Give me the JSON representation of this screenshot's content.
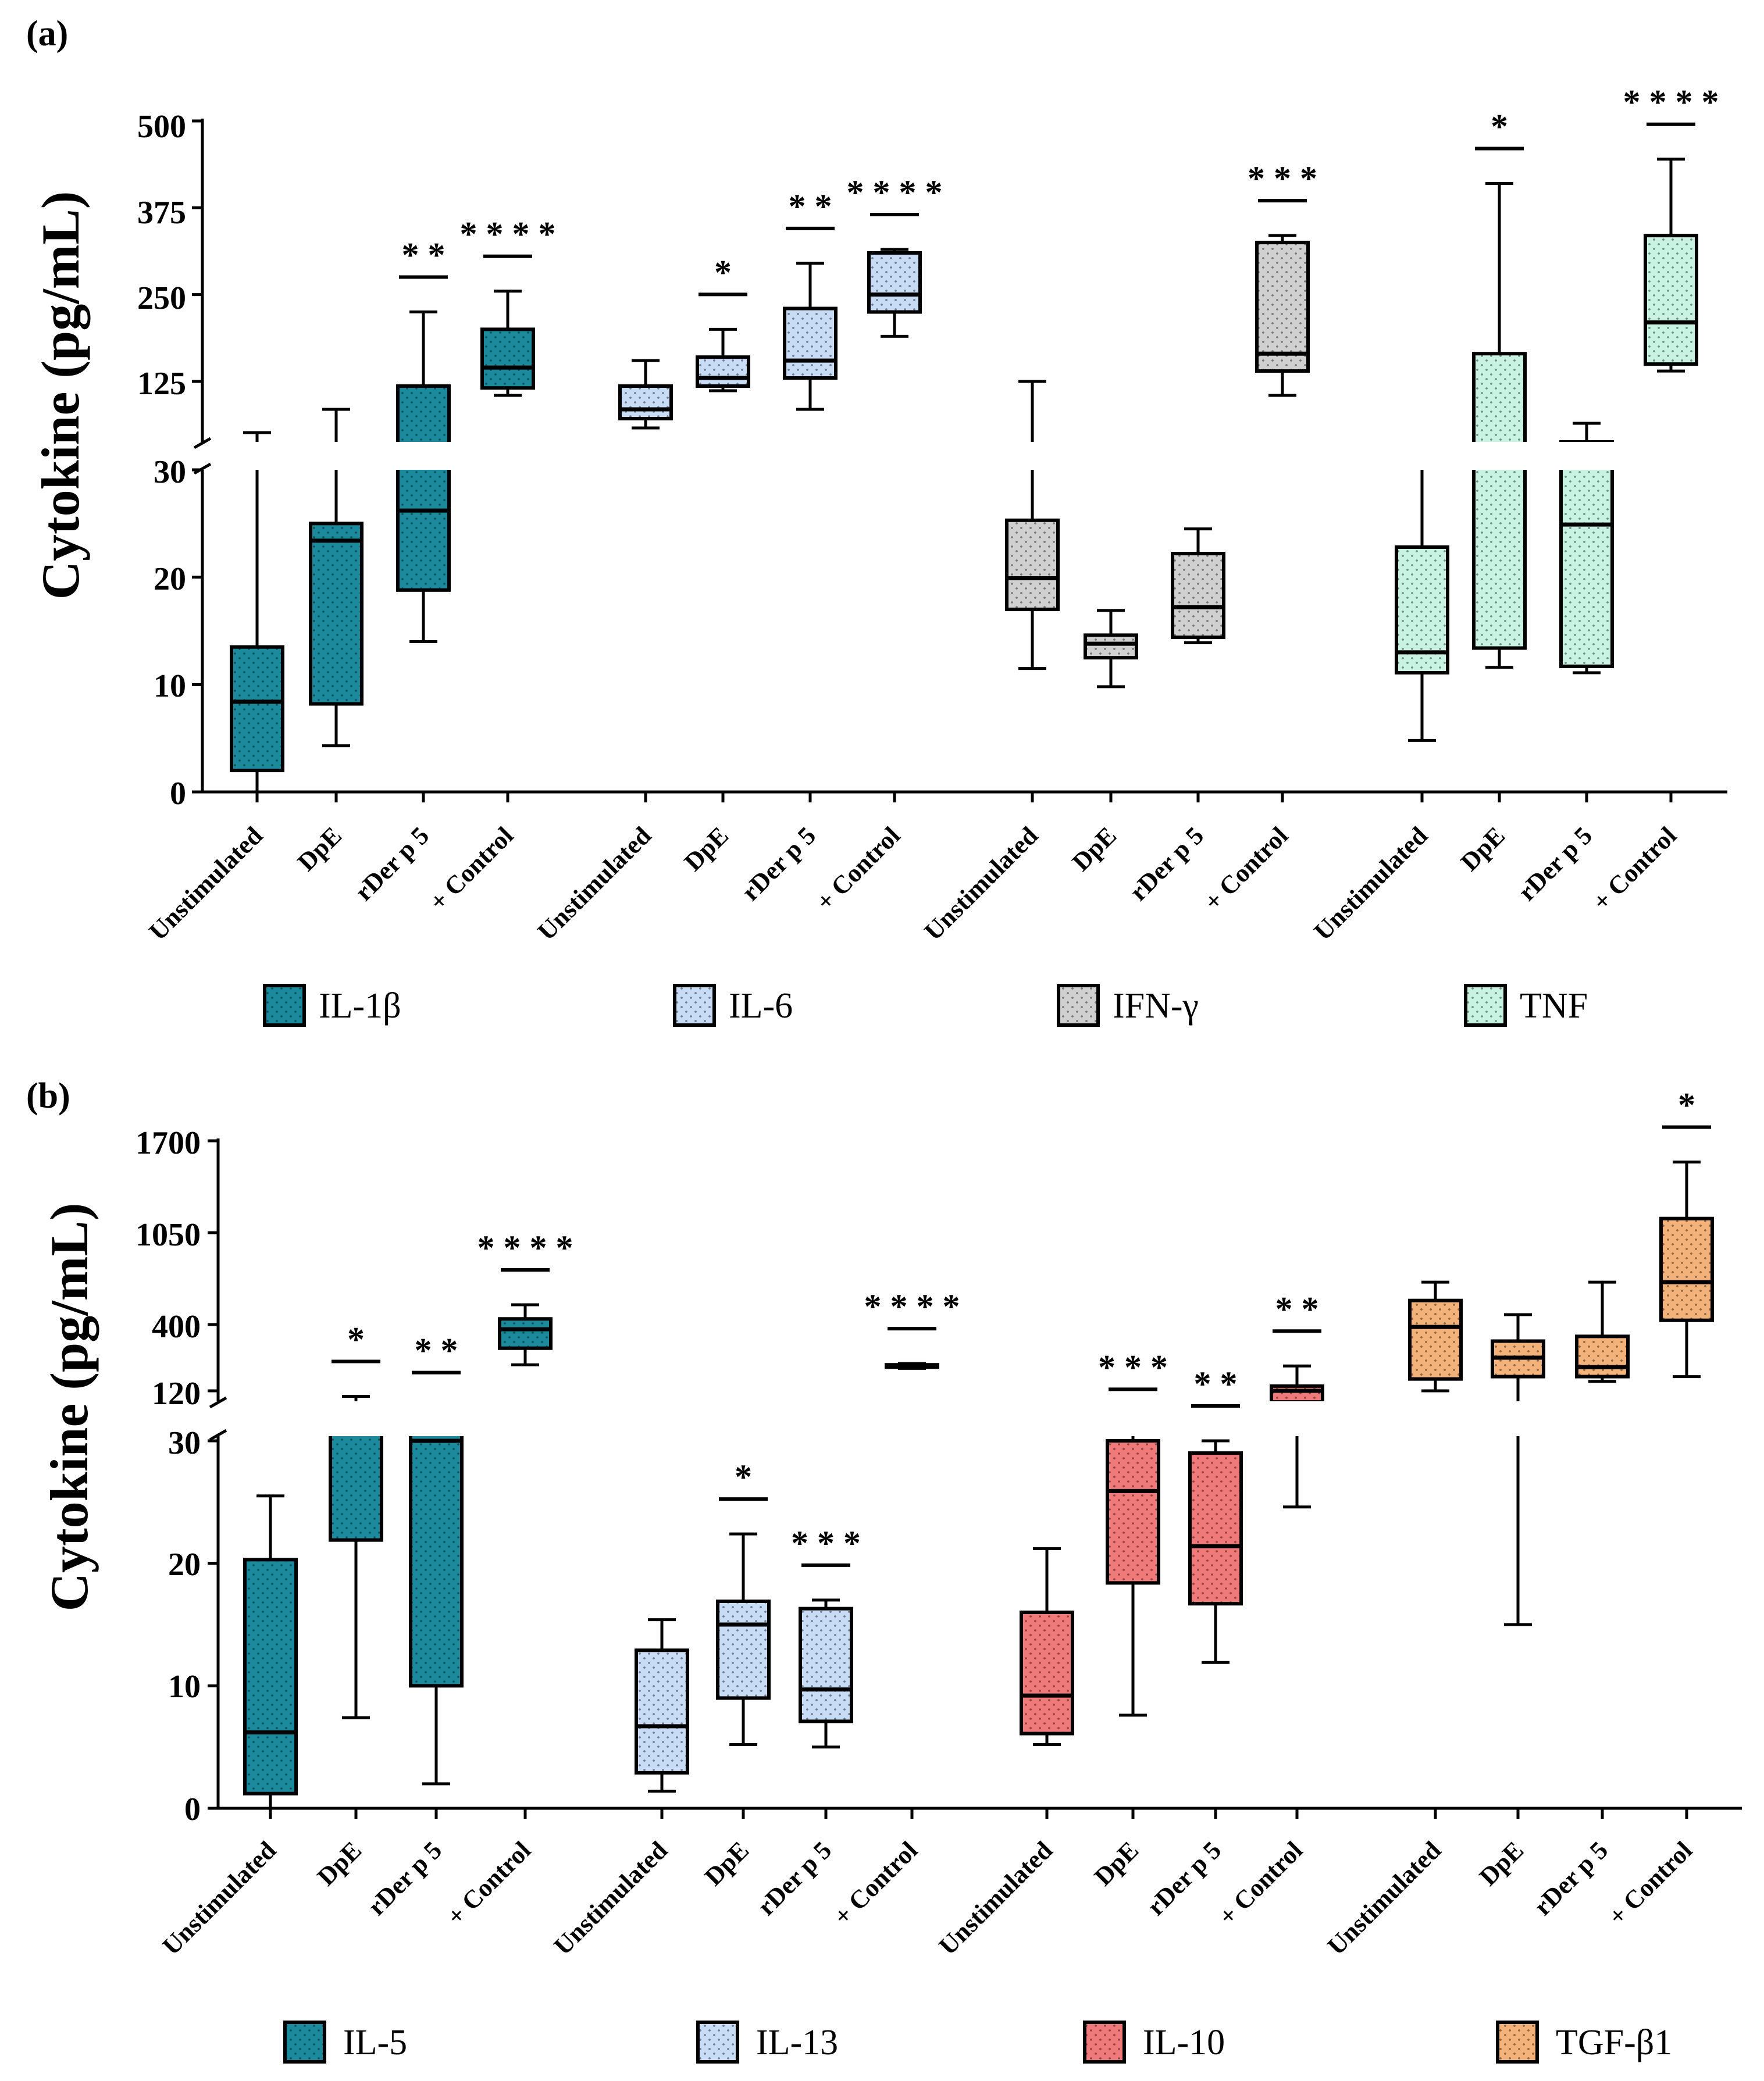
{
  "panels": [
    {
      "label": "(a)",
      "ylabel": "Cytokine (pg/mL)",
      "upper_ticks": [
        "500",
        "375",
        "250",
        "125"
      ],
      "lower_ticks": [
        "30",
        "20",
        "10",
        "0"
      ],
      "legend": [
        {
          "name": "IL-1β",
          "color": "#1b8a9c"
        },
        {
          "name": "IL-6",
          "color": "#c9dcf5"
        },
        {
          "name": "IFN-γ",
          "color": "#d0d0d0"
        },
        {
          "name": "TNF",
          "color": "#c8f3e2"
        }
      ]
    },
    {
      "label": "(b)",
      "ylabel": "Cytokine (pg/mL)",
      "upper_ticks": [
        "1700",
        "1050",
        "400",
        "120"
      ],
      "lower_ticks": [
        "30",
        "20",
        "10",
        "0"
      ],
      "legend": [
        {
          "name": "IL-5",
          "color": "#1b8a9c"
        },
        {
          "name": "IL-13",
          "color": "#c9dcf5"
        },
        {
          "name": "IL-10",
          "color": "#f07a7a"
        },
        {
          "name": "TGF-β1",
          "color": "#f2b27a"
        }
      ]
    }
  ],
  "chart_data": [
    {
      "type": "box",
      "title": "(a)",
      "ylabel": "Cytokine (pg/mL)",
      "y_axis_segments": {
        "lower": [
          0,
          30
        ],
        "upper": [
          125,
          500
        ]
      },
      "categories": [
        "Unstimulated",
        "DpE",
        "rDer p 5",
        "+ Control"
      ],
      "series": [
        {
          "name": "IL-1β",
          "color": "#1b8a9c",
          "boxes": [
            {
              "min": 0,
              "q1": 2,
              "median": 8.4,
              "q3": 13.5,
              "max": 70,
              "sig": ""
            },
            {
              "min": 4.3,
              "q1": 8.2,
              "median": 23.4,
              "q3": 25,
              "max": 95,
              "sig": ""
            },
            {
              "min": 14,
              "q1": 18.8,
              "median": 26.2,
              "q3": 120,
              "max": 225,
              "sig": "* *"
            },
            {
              "min": 110,
              "q1": 118,
              "median": 145,
              "q3": 200,
              "max": 255,
              "sig": "* * * *"
            }
          ]
        },
        {
          "name": "IL-6",
          "color": "#c9dcf5",
          "boxes": [
            {
              "min": 75,
              "q1": 85,
              "median": 95,
              "q3": 120,
              "max": 155,
              "sig": ""
            },
            {
              "min": 115,
              "q1": 120,
              "median": 130,
              "q3": 160,
              "max": 200,
              "sig": "*"
            },
            {
              "min": 95,
              "q1": 130,
              "median": 155,
              "q3": 230,
              "max": 295,
              "sig": "* *"
            },
            {
              "min": 190,
              "q1": 225,
              "median": 250,
              "q3": 310,
              "max": 315,
              "sig": "* * * *"
            }
          ]
        },
        {
          "name": "IFN-γ",
          "color": "#d0d0d0",
          "boxes": [
            {
              "min": 11.5,
              "q1": 17,
              "median": 19.9,
              "q3": 25.3,
              "max": 125,
              "sig": ""
            },
            {
              "min": 9.8,
              "q1": 12.5,
              "median": 13.8,
              "q3": 14.6,
              "max": 16.9,
              "sig": ""
            },
            {
              "min": 13.9,
              "q1": 14.4,
              "median": 17.2,
              "q3": 22.2,
              "max": 24.5,
              "sig": ""
            },
            {
              "min": 110,
              "q1": 140,
              "median": 165,
              "q3": 325,
              "max": 335,
              "sig": "* * *"
            }
          ]
        },
        {
          "name": "TNF",
          "color": "#c8f3e2",
          "boxes": [
            {
              "min": 4.8,
              "q1": 11.1,
              "median": 13,
              "q3": 22.8,
              "max": 38,
              "sig": ""
            },
            {
              "min": 11.6,
              "q1": 13.4,
              "median": 55,
              "q3": 165,
              "max": 410,
              "sig": "*"
            },
            {
              "min": 11.1,
              "q1": 11.7,
              "median": 24.9,
              "q3": 60,
              "max": 80,
              "sig": ""
            },
            {
              "min": 140,
              "q1": 150,
              "median": 210,
              "q3": 335,
              "max": 445,
              "sig": "* * * *"
            }
          ]
        }
      ]
    },
    {
      "type": "box",
      "title": "(b)",
      "ylabel": "Cytokine (pg/mL)",
      "y_axis_segments": {
        "lower": [
          0,
          30
        ],
        "upper": [
          120,
          1700
        ]
      },
      "categories": [
        "Unstimulated",
        "DpE",
        "rDer p 5",
        "+ Control"
      ],
      "series": [
        {
          "name": "IL-5",
          "color": "#1b8a9c",
          "boxes": [
            {
              "min": 0,
              "q1": 1.2,
              "median": 6.2,
              "q3": 20.3,
              "max": 25.5,
              "sig": ""
            },
            {
              "min": 7.4,
              "q1": 21.9,
              "median": 70,
              "q3": 90,
              "max": 110,
              "sig": "*"
            },
            {
              "min": 2,
              "q1": 10,
              "median": 30,
              "q3": 80,
              "max": 90,
              "sig": "* *"
            },
            {
              "min": 230,
              "q1": 300,
              "median": 380,
              "q3": 440,
              "max": 540,
              "sig": "* * * *"
            }
          ]
        },
        {
          "name": "IL-13",
          "color": "#c9dcf5",
          "boxes": [
            {
              "min": 1.4,
              "q1": 2.9,
              "median": 6.7,
              "q3": 12.9,
              "max": 15.4,
              "sig": ""
            },
            {
              "min": 5.2,
              "q1": 9,
              "median": 15,
              "q3": 16.9,
              "max": 22.4,
              "sig": "*"
            },
            {
              "min": 5,
              "q1": 7.1,
              "median": 9.7,
              "q3": 16.3,
              "max": 17,
              "sig": "* * *"
            },
            {
              "min": 215,
              "q1": 220,
              "median": 225,
              "q3": 230,
              "max": 235,
              "sig": "* * * *"
            }
          ]
        },
        {
          "name": "IL-10",
          "color": "#f07a7a",
          "boxes": [
            {
              "min": 5.2,
              "q1": 6.1,
              "median": 9.2,
              "q3": 16,
              "max": 21.2,
              "sig": ""
            },
            {
              "min": 7.6,
              "q1": 18.4,
              "median": 25.9,
              "q3": 30,
              "max": 60,
              "sig": "* * *"
            },
            {
              "min": 11.9,
              "q1": 16.7,
              "median": 21.4,
              "q3": 29,
              "max": 30,
              "sig": "* *"
            },
            {
              "min": 24.6,
              "q1": 100,
              "median": 120,
              "q3": 140,
              "max": 225,
              "sig": "* *"
            }
          ]
        },
        {
          "name": "TGF-β1",
          "color": "#f2b27a",
          "boxes": [
            {
              "min": 120,
              "q1": 170,
              "median": 390,
              "q3": 570,
              "max": 700,
              "sig": ""
            },
            {
              "min": 15,
              "q1": 180,
              "median": 260,
              "q3": 330,
              "max": 470,
              "sig": ""
            },
            {
              "min": 160,
              "q1": 180,
              "median": 220,
              "q3": 350,
              "max": 700,
              "sig": ""
            },
            {
              "min": 180,
              "q1": 430,
              "median": 700,
              "q3": 1150,
              "max": 1550,
              "sig": "*"
            }
          ]
        }
      ]
    }
  ]
}
